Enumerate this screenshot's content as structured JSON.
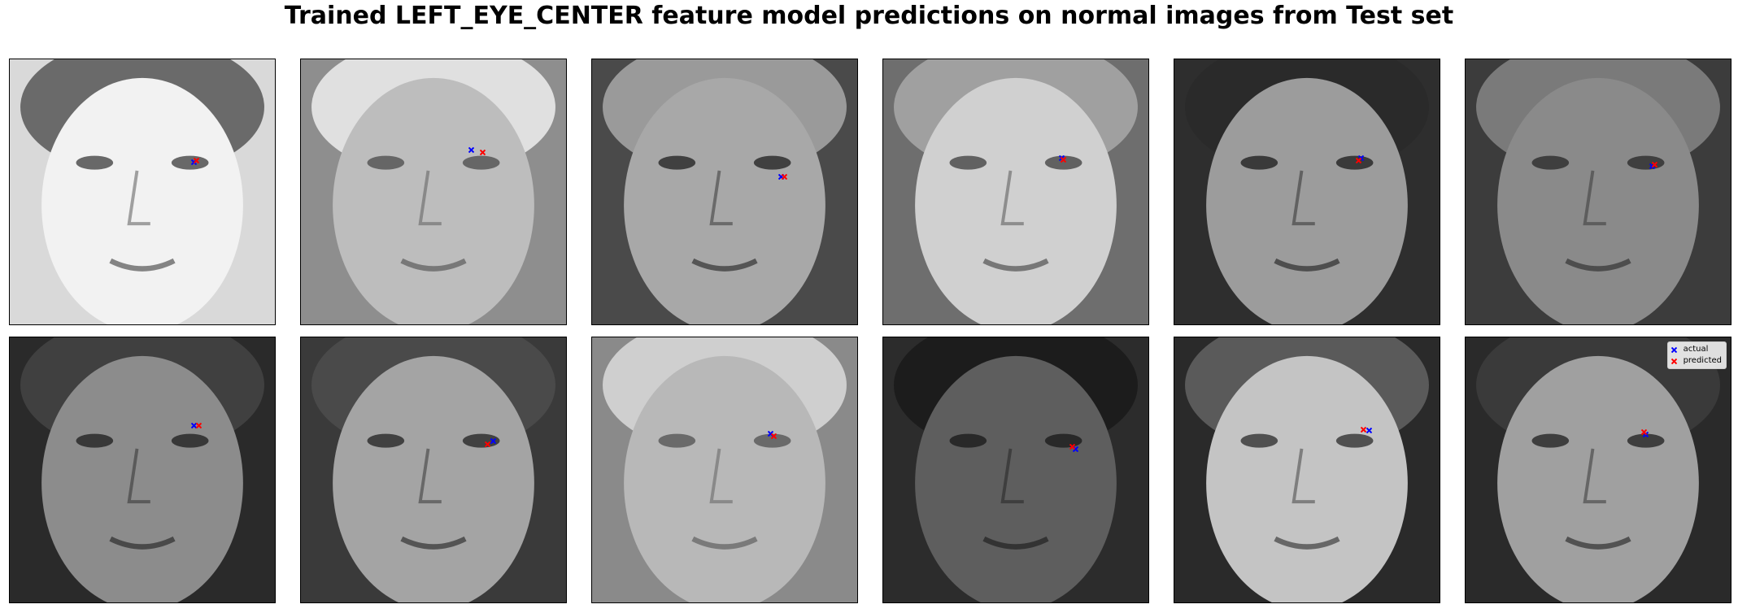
{
  "title": "Trained LEFT_EYE_CENTER feature model predictions on normal images from Test set",
  "colors": {
    "actual": "#0000ff",
    "predicted": "#ff0000"
  },
  "legend": {
    "actual_label": "actual",
    "predicted_label": "predicted"
  },
  "panels": [
    {
      "bg": "#d9d9d9",
      "skin": "#f2f2f2",
      "hair": "#6a6a6a",
      "shade": "#3a3a3a",
      "actual": [
        0.69,
        0.385
      ],
      "predicted": [
        0.7,
        0.38
      ]
    },
    {
      "bg": "#8e8e8e",
      "skin": "#bdbdbd",
      "hair": "#e0e0e0",
      "shade": "#4a4a4a",
      "actual": [
        0.64,
        0.34
      ],
      "predicted": [
        0.68,
        0.35
      ]
    },
    {
      "bg": "#4a4a4a",
      "skin": "#a8a8a8",
      "hair": "#9a9a9a",
      "shade": "#1e1e1e",
      "actual": [
        0.71,
        0.44
      ],
      "predicted": [
        0.72,
        0.44
      ]
    },
    {
      "bg": "#6e6e6e",
      "skin": "#d0d0d0",
      "hair": "#a0a0a0",
      "shade": "#3c3c3c",
      "actual": [
        0.67,
        0.37
      ],
      "predicted": [
        0.675,
        0.375
      ]
    },
    {
      "bg": "#2e2e2e",
      "skin": "#9c9c9c",
      "hair": "#2a2a2a",
      "shade": "#1a1a1a",
      "actual": [
        0.7,
        0.37
      ],
      "predicted": [
        0.69,
        0.38
      ]
    },
    {
      "bg": "#3c3c3c",
      "skin": "#8a8a8a",
      "hair": "#7a7a7a",
      "shade": "#252525",
      "actual": [
        0.7,
        0.4
      ],
      "predicted": [
        0.71,
        0.395
      ]
    },
    {
      "bg": "#2a2a2a",
      "skin": "#8c8c8c",
      "hair": "#404040",
      "shade": "#1c1c1c",
      "actual": [
        0.69,
        0.33
      ],
      "predicted": [
        0.71,
        0.33
      ]
    },
    {
      "bg": "#3a3a3a",
      "skin": "#a4a4a4",
      "hair": "#4a4a4a",
      "shade": "#202020",
      "actual": [
        0.72,
        0.39
      ],
      "predicted": [
        0.7,
        0.4
      ]
    },
    {
      "bg": "#8a8a8a",
      "skin": "#b8b8b8",
      "hair": "#cfcfcf",
      "shade": "#505050",
      "actual": [
        0.67,
        0.36
      ],
      "predicted": [
        0.68,
        0.37
      ]
    },
    {
      "bg": "#2c2c2c",
      "skin": "#5e5e5e",
      "hair": "#1c1c1c",
      "shade": "#181818",
      "actual": [
        0.72,
        0.42
      ],
      "predicted": [
        0.71,
        0.41
      ]
    },
    {
      "bg": "#2a2a2a",
      "skin": "#c4c4c4",
      "hair": "#5a5a5a",
      "shade": "#2a2a2a",
      "actual": [
        0.73,
        0.35
      ],
      "predicted": [
        0.71,
        0.345
      ]
    },
    {
      "bg": "#2a2a2a",
      "skin": "#a0a0a0",
      "hair": "#3a3a3a",
      "shade": "#1e1e1e",
      "actual": [
        0.675,
        0.365
      ],
      "predicted": [
        0.67,
        0.355
      ]
    }
  ]
}
